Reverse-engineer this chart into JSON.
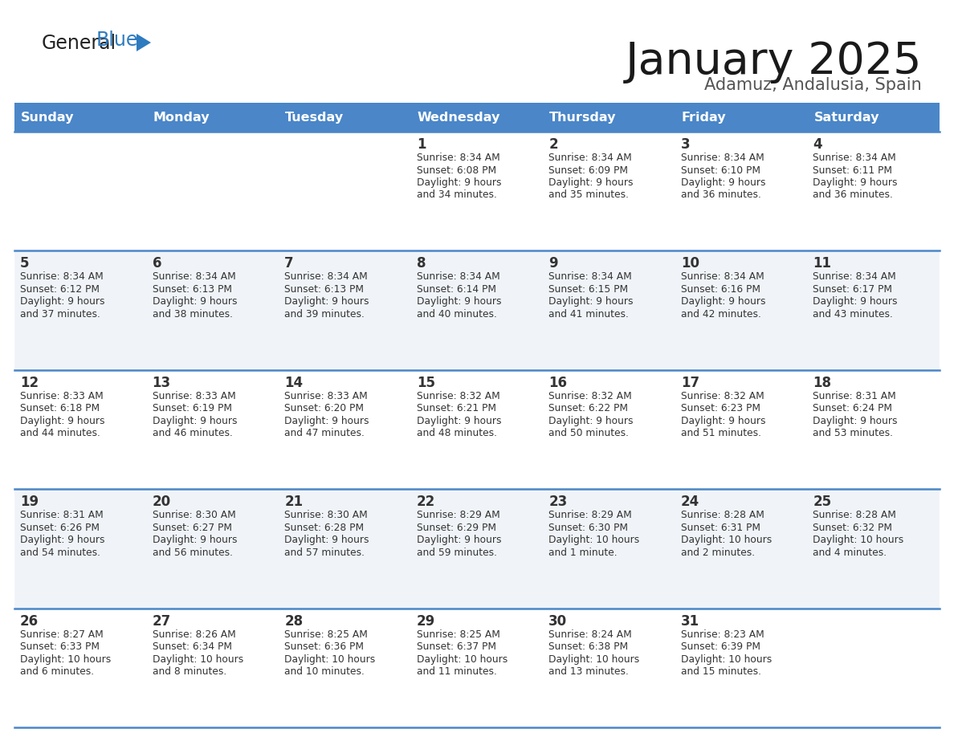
{
  "title": "January 2025",
  "subtitle": "Adamuz, Andalusia, Spain",
  "header_color": "#4a86c8",
  "header_text_color": "#ffffff",
  "days_of_week": [
    "Sunday",
    "Monday",
    "Tuesday",
    "Wednesday",
    "Thursday",
    "Friday",
    "Saturday"
  ],
  "bg_color": "#ffffff",
  "cell_bg_light": "#f0f4f8",
  "cell_bg_white": "#ffffff",
  "divider_color": "#4a86c8",
  "text_color": "#333333",
  "logo_general_color": "#222222",
  "logo_blue_color": "#2e7bbf",
  "logo_triangle_color": "#2e7bbf",
  "calendar": [
    [
      {
        "day": "",
        "info": ""
      },
      {
        "day": "",
        "info": ""
      },
      {
        "day": "",
        "info": ""
      },
      {
        "day": "1",
        "info": "Sunrise: 8:34 AM\nSunset: 6:08 PM\nDaylight: 9 hours\nand 34 minutes."
      },
      {
        "day": "2",
        "info": "Sunrise: 8:34 AM\nSunset: 6:09 PM\nDaylight: 9 hours\nand 35 minutes."
      },
      {
        "day": "3",
        "info": "Sunrise: 8:34 AM\nSunset: 6:10 PM\nDaylight: 9 hours\nand 36 minutes."
      },
      {
        "day": "4",
        "info": "Sunrise: 8:34 AM\nSunset: 6:11 PM\nDaylight: 9 hours\nand 36 minutes."
      }
    ],
    [
      {
        "day": "5",
        "info": "Sunrise: 8:34 AM\nSunset: 6:12 PM\nDaylight: 9 hours\nand 37 minutes."
      },
      {
        "day": "6",
        "info": "Sunrise: 8:34 AM\nSunset: 6:13 PM\nDaylight: 9 hours\nand 38 minutes."
      },
      {
        "day": "7",
        "info": "Sunrise: 8:34 AM\nSunset: 6:13 PM\nDaylight: 9 hours\nand 39 minutes."
      },
      {
        "day": "8",
        "info": "Sunrise: 8:34 AM\nSunset: 6:14 PM\nDaylight: 9 hours\nand 40 minutes."
      },
      {
        "day": "9",
        "info": "Sunrise: 8:34 AM\nSunset: 6:15 PM\nDaylight: 9 hours\nand 41 minutes."
      },
      {
        "day": "10",
        "info": "Sunrise: 8:34 AM\nSunset: 6:16 PM\nDaylight: 9 hours\nand 42 minutes."
      },
      {
        "day": "11",
        "info": "Sunrise: 8:34 AM\nSunset: 6:17 PM\nDaylight: 9 hours\nand 43 minutes."
      }
    ],
    [
      {
        "day": "12",
        "info": "Sunrise: 8:33 AM\nSunset: 6:18 PM\nDaylight: 9 hours\nand 44 minutes."
      },
      {
        "day": "13",
        "info": "Sunrise: 8:33 AM\nSunset: 6:19 PM\nDaylight: 9 hours\nand 46 minutes."
      },
      {
        "day": "14",
        "info": "Sunrise: 8:33 AM\nSunset: 6:20 PM\nDaylight: 9 hours\nand 47 minutes."
      },
      {
        "day": "15",
        "info": "Sunrise: 8:32 AM\nSunset: 6:21 PM\nDaylight: 9 hours\nand 48 minutes."
      },
      {
        "day": "16",
        "info": "Sunrise: 8:32 AM\nSunset: 6:22 PM\nDaylight: 9 hours\nand 50 minutes."
      },
      {
        "day": "17",
        "info": "Sunrise: 8:32 AM\nSunset: 6:23 PM\nDaylight: 9 hours\nand 51 minutes."
      },
      {
        "day": "18",
        "info": "Sunrise: 8:31 AM\nSunset: 6:24 PM\nDaylight: 9 hours\nand 53 minutes."
      }
    ],
    [
      {
        "day": "19",
        "info": "Sunrise: 8:31 AM\nSunset: 6:26 PM\nDaylight: 9 hours\nand 54 minutes."
      },
      {
        "day": "20",
        "info": "Sunrise: 8:30 AM\nSunset: 6:27 PM\nDaylight: 9 hours\nand 56 minutes."
      },
      {
        "day": "21",
        "info": "Sunrise: 8:30 AM\nSunset: 6:28 PM\nDaylight: 9 hours\nand 57 minutes."
      },
      {
        "day": "22",
        "info": "Sunrise: 8:29 AM\nSunset: 6:29 PM\nDaylight: 9 hours\nand 59 minutes."
      },
      {
        "day": "23",
        "info": "Sunrise: 8:29 AM\nSunset: 6:30 PM\nDaylight: 10 hours\nand 1 minute."
      },
      {
        "day": "24",
        "info": "Sunrise: 8:28 AM\nSunset: 6:31 PM\nDaylight: 10 hours\nand 2 minutes."
      },
      {
        "day": "25",
        "info": "Sunrise: 8:28 AM\nSunset: 6:32 PM\nDaylight: 10 hours\nand 4 minutes."
      }
    ],
    [
      {
        "day": "26",
        "info": "Sunrise: 8:27 AM\nSunset: 6:33 PM\nDaylight: 10 hours\nand 6 minutes."
      },
      {
        "day": "27",
        "info": "Sunrise: 8:26 AM\nSunset: 6:34 PM\nDaylight: 10 hours\nand 8 minutes."
      },
      {
        "day": "28",
        "info": "Sunrise: 8:25 AM\nSunset: 6:36 PM\nDaylight: 10 hours\nand 10 minutes."
      },
      {
        "day": "29",
        "info": "Sunrise: 8:25 AM\nSunset: 6:37 PM\nDaylight: 10 hours\nand 11 minutes."
      },
      {
        "day": "30",
        "info": "Sunrise: 8:24 AM\nSunset: 6:38 PM\nDaylight: 10 hours\nand 13 minutes."
      },
      {
        "day": "31",
        "info": "Sunrise: 8:23 AM\nSunset: 6:39 PM\nDaylight: 10 hours\nand 15 minutes."
      },
      {
        "day": "",
        "info": ""
      }
    ]
  ]
}
